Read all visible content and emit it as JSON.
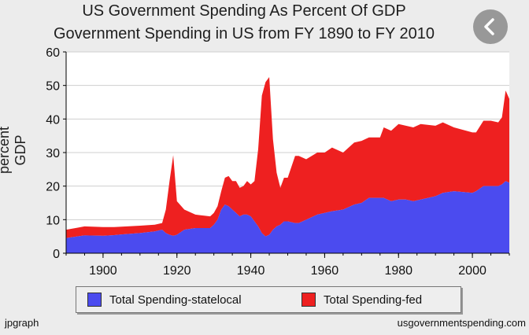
{
  "colors": {
    "state": "#4b4bef",
    "fed": "#ee2020",
    "grid": "#cfcfcf",
    "plot_bg": "#ffffff",
    "page_bg": "#ececec"
  },
  "back_icon": "chevron-left-icon",
  "footer": {
    "left": "jpgraph",
    "right": "usgovernmentspending.com"
  },
  "chart_data": {
    "type": "area",
    "stacked": true,
    "title": "US Government Spending As Percent Of GDP",
    "subtitle": "Government Spending in US from FY 1890 to FY 2010",
    "ylabel": "percent GDP",
    "xlabel": "",
    "xlim": [
      1890,
      2010
    ],
    "ylim": [
      0,
      60
    ],
    "xticks": [
      1900,
      1920,
      1940,
      1960,
      1980,
      2000
    ],
    "yticks": [
      0,
      10,
      20,
      30,
      40,
      50,
      60
    ],
    "grid": true,
    "legend": "bottom",
    "x": [
      1890,
      1893,
      1895,
      1900,
      1903,
      1905,
      1910,
      1914,
      1916,
      1917,
      1918,
      1919,
      1920,
      1922,
      1925,
      1929,
      1930,
      1931,
      1932,
      1933,
      1934,
      1935,
      1936,
      1937,
      1938,
      1939,
      1940,
      1941,
      1942,
      1943,
      1944,
      1945,
      1946,
      1947,
      1948,
      1949,
      1950,
      1952,
      1953,
      1955,
      1958,
      1960,
      1962,
      1965,
      1968,
      1970,
      1972,
      1975,
      1976,
      1978,
      1980,
      1982,
      1984,
      1986,
      1990,
      1992,
      1995,
      2000,
      2001,
      2003,
      2005,
      2007,
      2008,
      2009,
      2010
    ],
    "series": [
      {
        "name": "Total Spending-statelocal",
        "values": [
          4.5,
          5.0,
          5.3,
          5.2,
          5.4,
          5.6,
          6.0,
          6.5,
          7.0,
          6.0,
          5.5,
          5.2,
          5.5,
          7.0,
          7.5,
          7.5,
          8.5,
          10.0,
          13.0,
          14.5,
          14.0,
          13.0,
          12.0,
          11.0,
          11.5,
          11.5,
          11.0,
          9.5,
          8.0,
          6.0,
          5.0,
          5.5,
          7.0,
          8.0,
          8.5,
          9.5,
          9.5,
          9.0,
          9.0,
          10.0,
          11.5,
          12.0,
          12.5,
          13.0,
          14.5,
          15.0,
          16.5,
          16.5,
          16.5,
          15.5,
          16.0,
          16.0,
          15.5,
          16.0,
          17.0,
          18.0,
          18.5,
          18.0,
          18.5,
          20.0,
          20.0,
          20.0,
          20.5,
          21.5,
          21.0
        ]
      },
      {
        "name": "Total Spending-fed",
        "values": [
          2.5,
          2.6,
          2.7,
          2.6,
          2.4,
          2.3,
          2.2,
          2.0,
          2.0,
          7.0,
          16.0,
          24.0,
          10.0,
          6.0,
          4.0,
          3.5,
          3.5,
          4.0,
          5.5,
          8.0,
          9.0,
          8.5,
          9.5,
          8.5,
          8.5,
          10.0,
          9.5,
          12.0,
          23.0,
          41.0,
          46.0,
          47.0,
          27.0,
          16.0,
          11.0,
          13.0,
          13.0,
          20.0,
          20.0,
          18.0,
          18.5,
          18.0,
          19.0,
          17.0,
          18.5,
          18.5,
          18.0,
          18.0,
          21.0,
          21.0,
          22.5,
          22.0,
          22.0,
          22.5,
          21.0,
          21.0,
          19.0,
          18.0,
          17.5,
          19.5,
          19.5,
          19.0,
          20.0,
          27.0,
          25.0
        ]
      }
    ]
  }
}
